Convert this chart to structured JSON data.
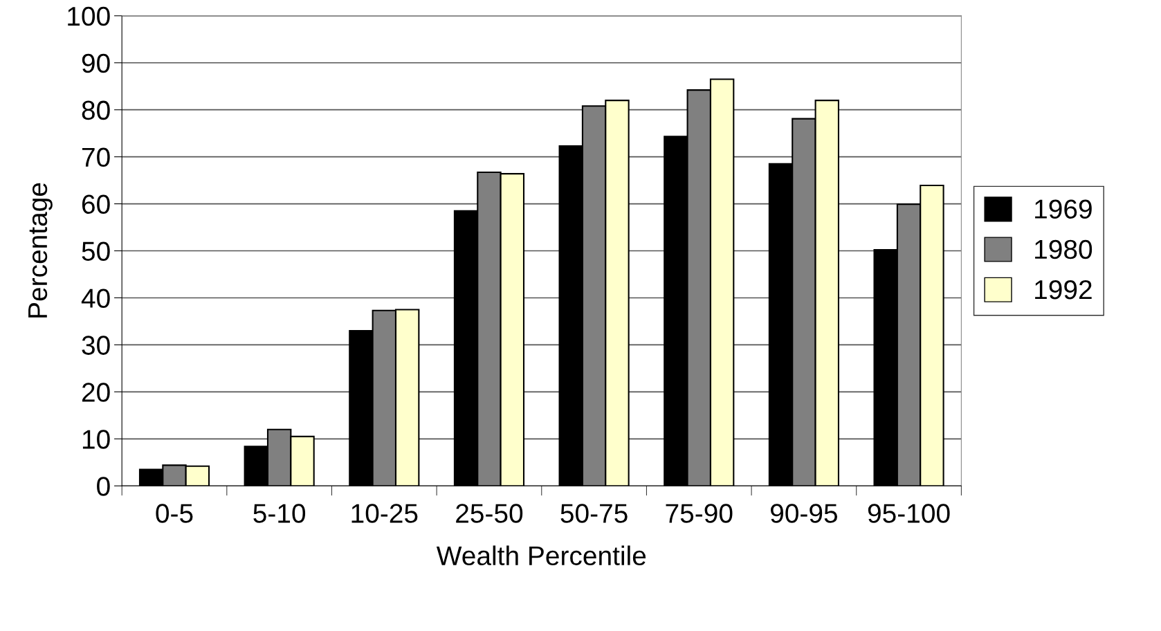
{
  "chart_data": {
    "type": "bar",
    "xlabel": "Wealth Percentile",
    "ylabel": "Percentage",
    "categories": [
      "0-5",
      "5-10",
      "10-25",
      "25-50",
      "50-75",
      "75-90",
      "90-95",
      "95-100"
    ],
    "series": [
      {
        "name": "1969",
        "color": "#000000",
        "values": [
          3.5,
          8.4,
          33.0,
          58.5,
          72.3,
          74.3,
          68.5,
          50.2
        ]
      },
      {
        "name": "1980",
        "color": "#808080",
        "values": [
          4.4,
          12.0,
          37.3,
          66.7,
          80.8,
          84.2,
          78.1,
          59.9
        ]
      },
      {
        "name": "1992",
        "color": "#ffffcc",
        "values": [
          4.2,
          10.5,
          37.5,
          66.4,
          82.0,
          86.5,
          82.0,
          63.9
        ]
      }
    ],
    "ylim": [
      0,
      100
    ],
    "yticks": [
      0,
      10,
      20,
      30,
      40,
      50,
      60,
      70,
      80,
      90,
      100
    ],
    "grid": "y",
    "legend": "right"
  }
}
